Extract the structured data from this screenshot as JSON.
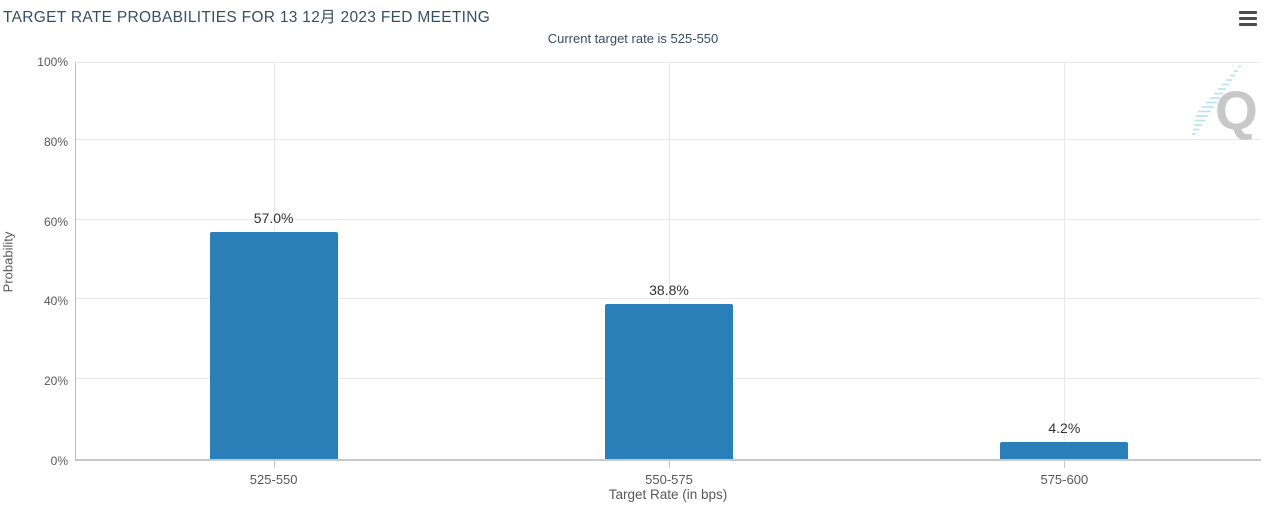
{
  "menu": {
    "icon": "hamburger-menu-icon"
  },
  "chart_data": {
    "type": "bar",
    "title": "TARGET RATE PROBABILITIES FOR 13 12月 2023 FED MEETING",
    "subtitle": "Current target rate is 525-550",
    "categories": [
      "525-550",
      "550-575",
      "575-600"
    ],
    "values": [
      57.0,
      38.8,
      4.2
    ],
    "value_labels": [
      "57.0%",
      "38.8%",
      "4.2%"
    ],
    "xlabel": "Target Rate (in bps)",
    "ylabel": "Probability",
    "ylim": [
      0,
      100
    ],
    "yticks": [
      {
        "value": 0,
        "label": "0%"
      },
      {
        "value": 20,
        "label": "20%"
      },
      {
        "value": 40,
        "label": "40%"
      },
      {
        "value": 60,
        "label": "60%"
      },
      {
        "value": 80,
        "label": "80%"
      },
      {
        "value": 100,
        "label": "100%"
      }
    ],
    "grid": true,
    "legend_position": "none",
    "watermark_letter": "Q"
  },
  "colors": {
    "title_text": "#374f63",
    "axis_text": "#58595b",
    "bar_fill": "#2a7fb8",
    "gridline": "#e8e8e8",
    "axis_line": "#c6c9cb",
    "data_label": "#333333",
    "watermark_q": "#c8c8c8",
    "watermark_dash": "#b8e4ee",
    "menu_icon": "#4d4d4d"
  }
}
